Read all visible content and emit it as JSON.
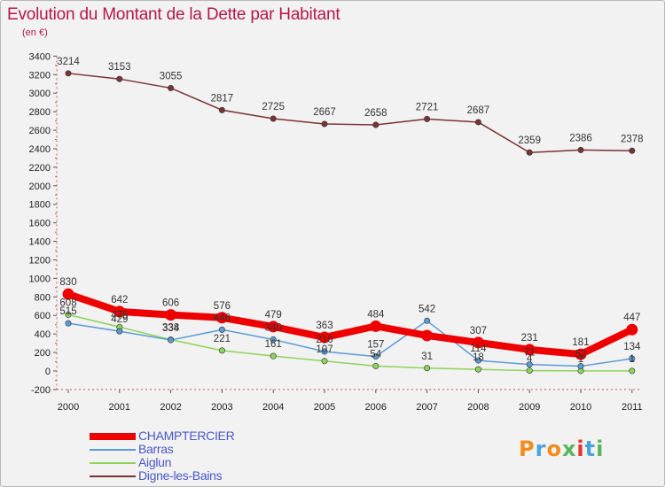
{
  "title": "Evolution du Montant de la Dette par Habitant",
  "subtitle": "(en €)",
  "brand": {
    "text": "Proxiti",
    "colors": [
      "#f28c1a",
      "#49a3dc",
      "#f28c1a",
      "#5bb65b",
      "#e8312d",
      "#49a3dc",
      "#5bb65b"
    ]
  },
  "chart_data": {
    "type": "line",
    "title": "Evolution du Montant de la Dette par Habitant",
    "ylabel": "(en €)",
    "xlabel": "",
    "x": [
      "2000",
      "2001",
      "2002",
      "2003",
      "2004",
      "2005",
      "2006",
      "2007",
      "2008",
      "2009",
      "2010",
      "2011"
    ],
    "ylim": [
      -200,
      3400
    ],
    "yticks": [
      -200,
      0,
      200,
      400,
      600,
      800,
      1000,
      1200,
      1400,
      1600,
      1800,
      2000,
      2200,
      2400,
      2600,
      2800,
      3000,
      3200,
      3400
    ],
    "grid": false,
    "legend_position": "bottom-left",
    "series": [
      {
        "name": "CHAMPTERCIER",
        "color": "#ee0000",
        "values": [
          830,
          642,
          606,
          576,
          479,
          363,
          484,
          383,
          307,
          231,
          181,
          447
        ],
        "labels": [
          "830",
          "642",
          "606",
          "576",
          "479",
          "363",
          "484",
          "",
          "307",
          "231",
          "181",
          "447"
        ]
      },
      {
        "name": "Barras",
        "color": "#5b9bd5",
        "values": [
          515,
          429,
          334,
          446,
          340,
          210,
          157,
          542,
          114,
          71,
          52,
          134
        ],
        "labels": [
          "515",
          "429",
          "334",
          "446",
          "340",
          "210",
          "157",
          "542",
          "114",
          "71",
          "52",
          "134"
        ]
      },
      {
        "name": "Aiglun",
        "color": "#8ed35a",
        "values": [
          608,
          475,
          338,
          221,
          161,
          107,
          54,
          31,
          18,
          4,
          1,
          1
        ],
        "labels": [
          "608",
          "475",
          "338",
          "221",
          "161",
          "107",
          "54",
          "31",
          "18",
          "4",
          "1",
          "1"
        ]
      },
      {
        "name": "Digne-les-Bains",
        "color": "#7a3333",
        "values": [
          3214,
          3153,
          3055,
          2817,
          2725,
          2667,
          2658,
          2721,
          2687,
          2359,
          2386,
          2378
        ],
        "labels": [
          "3214",
          "3153",
          "3055",
          "2817",
          "2725",
          "2667",
          "2658",
          "2721",
          "2687",
          "2359",
          "2386",
          "2378"
        ]
      }
    ]
  }
}
